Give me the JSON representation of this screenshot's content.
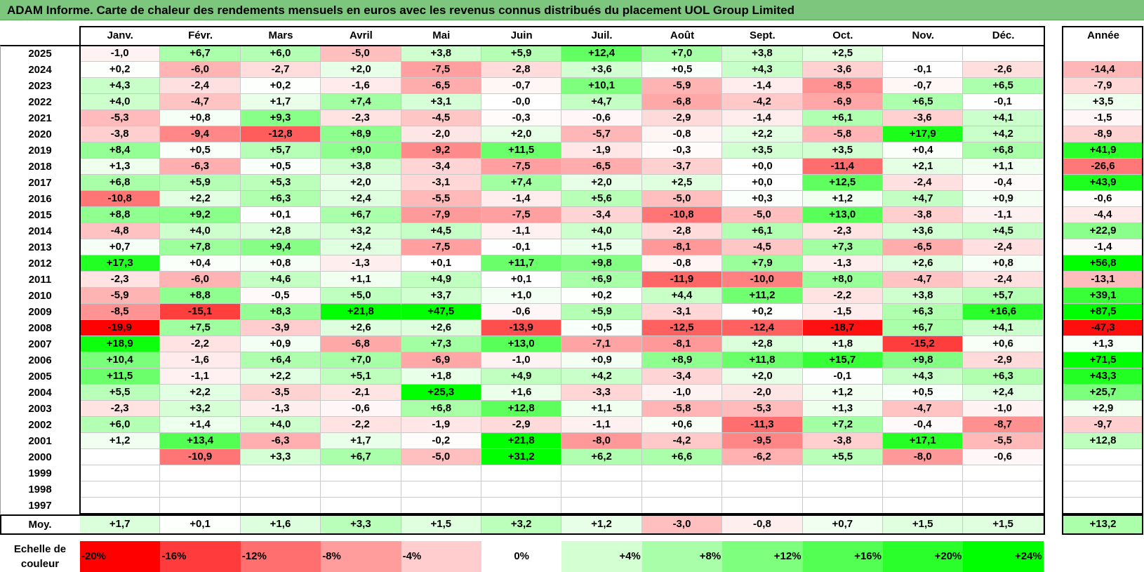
{
  "title": "ADAM Informe. Carte de chaleur des rendements mensuels en euros avec les revenus connus distribués du placement UOL Group Limited",
  "colors": {
    "title_bar": "#7dc67d",
    "positive": "#00ff00",
    "negative": "#ff0000",
    "neutral": "#ffffff"
  },
  "chart_data": {
    "type": "heatmap",
    "title": "ADAM Informe. Carte de chaleur des rendements mensuels en euros avec les revenus connus distribués du placement UOL Group Limited",
    "columns": [
      "Janv.",
      "Févr.",
      "Mars",
      "Avril",
      "Mai",
      "Juin",
      "Juil.",
      "Août",
      "Sept.",
      "Oct.",
      "Nov.",
      "Déc."
    ],
    "year_column": "Année",
    "rows": [
      {
        "year": "2025",
        "values": [
          "-1,0",
          "+6,7",
          "+6,0",
          "-5,0",
          "+3,8",
          "+5,9",
          "+12,4",
          "+7,0",
          "+3,8",
          "+2,5",
          "",
          ""
        ],
        "annual": ""
      },
      {
        "year": "2024",
        "values": [
          "+0,2",
          "-6,0",
          "-2,7",
          "+2,0",
          "-7,5",
          "-2,8",
          "+3,6",
          "+0,5",
          "+4,3",
          "-3,6",
          "-0,1",
          "-2,6"
        ],
        "annual": "-14,4"
      },
      {
        "year": "2023",
        "values": [
          "+4,3",
          "-2,4",
          "+0,2",
          "-1,6",
          "-6,5",
          "-0,7",
          "+10,1",
          "-5,9",
          "-1,4",
          "-8,5",
          "-0,7",
          "+6,5"
        ],
        "annual": "-7,9"
      },
      {
        "year": "2022",
        "values": [
          "+4,0",
          "-4,7",
          "+1,7",
          "+7,4",
          "+3,1",
          "-0,0",
          "+4,7",
          "-6,8",
          "-4,2",
          "-6,9",
          "+6,5",
          "-0,1"
        ],
        "annual": "+3,5"
      },
      {
        "year": "2021",
        "values": [
          "-5,3",
          "+0,8",
          "+9,3",
          "-2,3",
          "-4,5",
          "-0,3",
          "-0,6",
          "-2,9",
          "-1,4",
          "+6,1",
          "-3,6",
          "+4,1"
        ],
        "annual": "-1,5"
      },
      {
        "year": "2020",
        "values": [
          "-3,8",
          "-9,4",
          "-12,8",
          "+8,9",
          "-2,0",
          "+2,0",
          "-5,7",
          "-0,8",
          "+2,2",
          "-5,8",
          "+17,9",
          "+4,2"
        ],
        "annual": "-8,9"
      },
      {
        "year": "2019",
        "values": [
          "+8,4",
          "+0,5",
          "+5,7",
          "+9,0",
          "-9,2",
          "+11,5",
          "-1,9",
          "-0,3",
          "+3,5",
          "+3,5",
          "+0,4",
          "+6,8"
        ],
        "annual": "+41,9"
      },
      {
        "year": "2018",
        "values": [
          "+1,3",
          "-6,3",
          "+0,5",
          "+3,8",
          "-3,4",
          "-7,5",
          "-6,5",
          "-3,7",
          "+0,0",
          "-11,4",
          "+2,1",
          "+1,1"
        ],
        "annual": "-26,6"
      },
      {
        "year": "2017",
        "values": [
          "+6,8",
          "+5,9",
          "+5,3",
          "+2,0",
          "-3,1",
          "+7,4",
          "+2,0",
          "+2,5",
          "+0,0",
          "+12,5",
          "-2,4",
          "-0,4"
        ],
        "annual": "+43,9"
      },
      {
        "year": "2016",
        "values": [
          "-10,8",
          "+2,2",
          "+6,3",
          "+2,4",
          "-5,5",
          "-1,4",
          "+5,6",
          "-5,0",
          "+0,3",
          "+1,2",
          "+4,7",
          "+0,9"
        ],
        "annual": "-0,6"
      },
      {
        "year": "2015",
        "values": [
          "+8,8",
          "+9,2",
          "+0,1",
          "+6,7",
          "-7,9",
          "-7,5",
          "-3,4",
          "-10,8",
          "-5,0",
          "+13,0",
          "-3,8",
          "-1,1"
        ],
        "annual": "-4,4"
      },
      {
        "year": "2014",
        "values": [
          "-4,8",
          "+4,0",
          "+2,8",
          "+3,2",
          "+4,5",
          "-1,1",
          "+4,0",
          "-2,8",
          "+6,1",
          "-2,3",
          "+3,6",
          "+4,5"
        ],
        "annual": "+22,9"
      },
      {
        "year": "2013",
        "values": [
          "+0,7",
          "+7,8",
          "+9,4",
          "+2,4",
          "-7,5",
          "-0,1",
          "+1,5",
          "-8,1",
          "-4,5",
          "+7,3",
          "-6,5",
          "-2,4"
        ],
        "annual": "-1,4"
      },
      {
        "year": "2012",
        "values": [
          "+17,3",
          "+0,4",
          "+0,8",
          "-1,3",
          "+0,1",
          "+11,7",
          "+9,8",
          "-0,8",
          "+7,9",
          "-1,3",
          "+2,6",
          "+0,8"
        ],
        "annual": "+56,8"
      },
      {
        "year": "2011",
        "values": [
          "-2,3",
          "-6,0",
          "+4,6",
          "+1,1",
          "+4,9",
          "+0,1",
          "+6,9",
          "-11,9",
          "-10,0",
          "+8,0",
          "-4,7",
          "-2,4"
        ],
        "annual": "-13,1"
      },
      {
        "year": "2010",
        "values": [
          "-5,9",
          "+8,8",
          "-0,5",
          "+5,0",
          "+3,7",
          "+1,0",
          "+0,2",
          "+4,4",
          "+11,2",
          "-2,2",
          "+3,8",
          "+5,7"
        ],
        "annual": "+39,1"
      },
      {
        "year": "2009",
        "values": [
          "-8,5",
          "-15,1",
          "+8,3",
          "+21,8",
          "+47,5",
          "-0,6",
          "+5,9",
          "-3,1",
          "+0,2",
          "-1,5",
          "+6,3",
          "+16,6"
        ],
        "annual": "+87,5"
      },
      {
        "year": "2008",
        "values": [
          "-19,9",
          "+7,5",
          "-3,9",
          "+2,6",
          "+2,6",
          "-13,9",
          "+0,5",
          "-12,5",
          "-12,4",
          "-18,7",
          "+6,7",
          "+4,1"
        ],
        "annual": "-47,3"
      },
      {
        "year": "2007",
        "values": [
          "+18,9",
          "-2,2",
          "+0,9",
          "-6,8",
          "+7,3",
          "+13,0",
          "-7,1",
          "-8,1",
          "+2,8",
          "+1,8",
          "-15,2",
          "+0,6"
        ],
        "annual": "+1,3"
      },
      {
        "year": "2006",
        "values": [
          "+10,4",
          "-1,6",
          "+6,4",
          "+7,0",
          "-6,9",
          "-1,0",
          "+0,9",
          "+8,9",
          "+11,8",
          "+15,7",
          "+9,8",
          "-2,9"
        ],
        "annual": "+71,5"
      },
      {
        "year": "2005",
        "values": [
          "+11,5",
          "-1,1",
          "+2,2",
          "+5,1",
          "+1,8",
          "+4,9",
          "+4,2",
          "-3,4",
          "+2,0",
          "-0,1",
          "+4,3",
          "+6,3"
        ],
        "annual": "+43,3"
      },
      {
        "year": "2004",
        "values": [
          "+5,5",
          "+2,2",
          "-3,5",
          "-2,1",
          "+25,3",
          "+1,6",
          "-3,3",
          "-1,0",
          "-2,0",
          "+1,2",
          "+0,5",
          "+2,4"
        ],
        "annual": "+25,7"
      },
      {
        "year": "2003",
        "values": [
          "-2,3",
          "+3,2",
          "-1,3",
          "-0,6",
          "+6,8",
          "+12,8",
          "+1,1",
          "-5,8",
          "-5,3",
          "+1,3",
          "-4,7",
          "-1,0"
        ],
        "annual": "+2,9"
      },
      {
        "year": "2002",
        "values": [
          "+6,0",
          "+1,4",
          "+4,0",
          "-2,2",
          "-1,9",
          "-2,9",
          "-1,1",
          "+0,6",
          "-11,3",
          "+7,2",
          "-0,4",
          "-8,7"
        ],
        "annual": "-9,7"
      },
      {
        "year": "2001",
        "values": [
          "+1,2",
          "+13,4",
          "-6,3",
          "+1,7",
          "-0,2",
          "+21,8",
          "-8,0",
          "-4,2",
          "-9,5",
          "-3,8",
          "+17,1",
          "-5,5"
        ],
        "annual": "+12,8"
      },
      {
        "year": "2000",
        "values": [
          "",
          "-10,9",
          "+3,3",
          "+6,7",
          "-5,0",
          "+31,2",
          "+6,2",
          "+6,6",
          "-6,2",
          "+5,5",
          "-8,0",
          "-0,6"
        ],
        "annual": ""
      },
      {
        "year": "1999",
        "values": [
          "",
          "",
          "",
          "",
          "",
          "",
          "",
          "",
          "",
          "",
          "",
          ""
        ],
        "annual": ""
      },
      {
        "year": "1998",
        "values": [
          "",
          "",
          "",
          "",
          "",
          "",
          "",
          "",
          "",
          "",
          "",
          ""
        ],
        "annual": ""
      },
      {
        "year": "1997",
        "values": [
          "",
          "",
          "",
          "",
          "",
          "",
          "",
          "",
          "",
          "",
          "",
          ""
        ],
        "annual": ""
      }
    ],
    "average": {
      "label": "Moy.",
      "values": [
        "+1,7",
        "+0,1",
        "+1,6",
        "+3,3",
        "+1,5",
        "+3,2",
        "+1,2",
        "-3,0",
        "-0,8",
        "+0,7",
        "+1,5",
        "+1,5"
      ],
      "annual": "+13,2"
    },
    "legend": {
      "title_line1": "Echelle de",
      "title_line2": "couleur",
      "steps": [
        "-20%",
        "-16%",
        "-12%",
        "-8%",
        "-4%",
        "0%",
        "+4%",
        "+8%",
        "+12%",
        "+16%",
        "+20%",
        "+24%"
      ]
    }
  }
}
